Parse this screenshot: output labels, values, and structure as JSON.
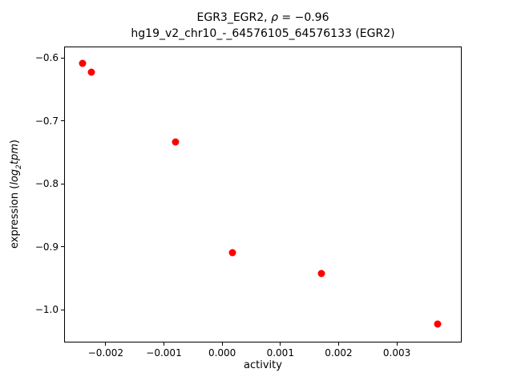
{
  "figure": {
    "title": {
      "line1_pre": "EGR3_EGR2, ",
      "line1_rho": "ρ",
      "line1_post": " = −0.96",
      "line2": "hg19_v2_chr10_-_64576105_64576133 (EGR2)"
    },
    "xlabel": "activity",
    "ylabel": {
      "prefix": "expression (",
      "math1": "log",
      "sub": "2",
      "math2": "tpm",
      "suffix": ")"
    }
  },
  "chart_data": {
    "type": "scatter",
    "title": "EGR3_EGR2, ρ = −0.96\nhg19_v2_chr10_-_64576105_64576133 (EGR2)",
    "xlabel": "activity",
    "ylabel": "expression (log2 tpm)",
    "marker_color": "#ff0000",
    "marker_size_px": 9,
    "grid": false,
    "legend": null,
    "xlim": [
      -0.0027,
      0.0041
    ],
    "ylim": [
      -1.051,
      -0.583
    ],
    "x_ticks": [
      -0.002,
      -0.001,
      0.0,
      0.001,
      0.002,
      0.003
    ],
    "x_tick_labels": [
      "−0.002",
      "−0.001",
      "0.000",
      "0.001",
      "0.002",
      "0.003"
    ],
    "y_ticks": [
      -0.6,
      -0.7,
      -0.8,
      -0.9,
      -1.0
    ],
    "y_tick_labels": [
      "−0.6",
      "−0.7",
      "−0.8",
      "−0.9",
      "−1.0"
    ],
    "points": [
      {
        "x": -0.0024,
        "y": -0.608
      },
      {
        "x": -0.00225,
        "y": -0.622
      },
      {
        "x": -0.0008,
        "y": -0.733
      },
      {
        "x": 0.00018,
        "y": -0.909
      },
      {
        "x": 0.0017,
        "y": -0.943
      },
      {
        "x": 0.0037,
        "y": -1.023
      }
    ]
  }
}
